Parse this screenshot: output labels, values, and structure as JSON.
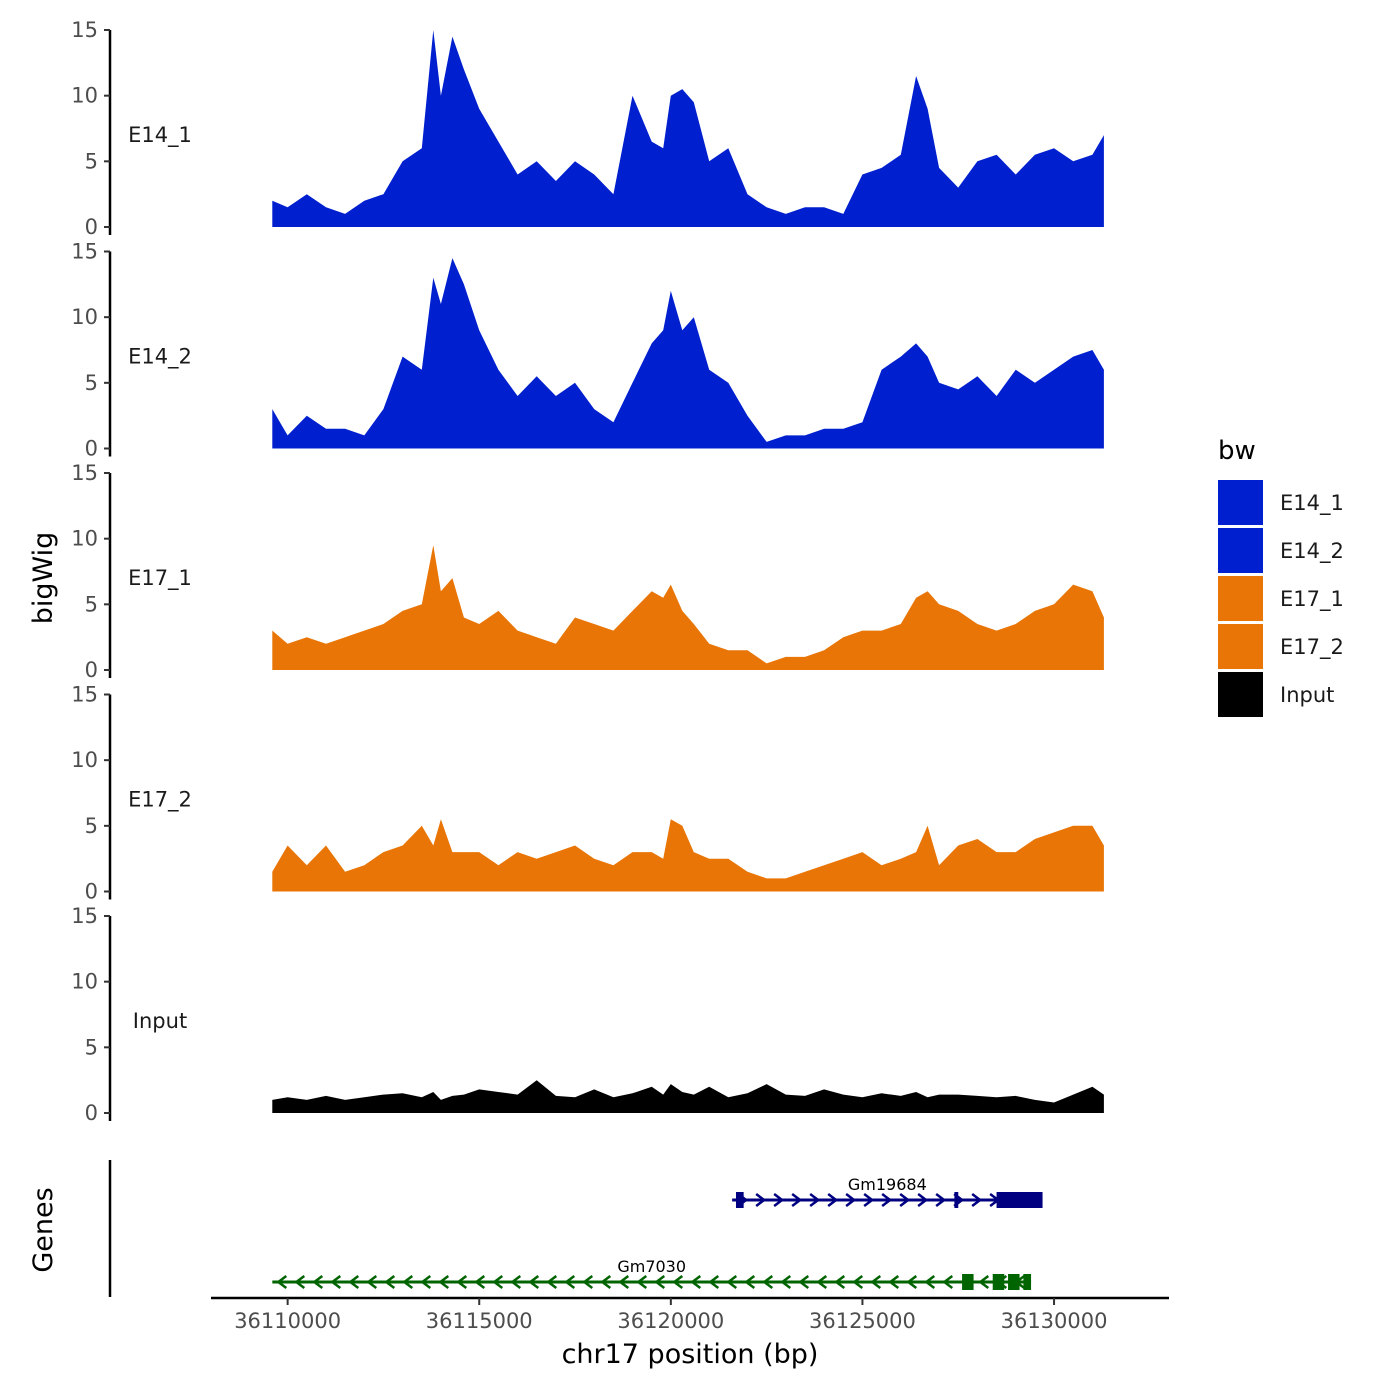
{
  "chart_data": {
    "type": "area",
    "chromosome": "chr17",
    "xlabel": "chr17 position (bp)",
    "ylabel_tracks": "bigWig",
    "ylabel_genes": "Genes",
    "xlim": [
      36108000,
      36133000
    ],
    "ylim": [
      0,
      15
    ],
    "x_ticks": [
      36110000,
      36115000,
      36120000,
      36125000,
      36130000
    ],
    "x_tick_labels": [
      "36110000",
      "36115000",
      "36120000",
      "36125000",
      "36130000"
    ],
    "y_ticks": [
      0,
      5,
      10,
      15
    ],
    "y_tick_labels": [
      "0",
      "5",
      "10",
      "15"
    ],
    "x": [
      36109600,
      36110000,
      36110500,
      36111000,
      36111500,
      36112000,
      36112500,
      36113000,
      36113500,
      36113800,
      36114000,
      36114300,
      36114600,
      36115000,
      36115500,
      36116000,
      36116500,
      36117000,
      36117500,
      36118000,
      36118500,
      36119000,
      36119500,
      36119800,
      36120000,
      36120300,
      36120600,
      36121000,
      36121500,
      36122000,
      36122500,
      36123000,
      36123500,
      36124000,
      36124500,
      36125000,
      36125500,
      36126000,
      36126400,
      36126700,
      36127000,
      36127500,
      36128000,
      36128500,
      36129000,
      36129500,
      36130000,
      36130500,
      36131000,
      36131300
    ],
    "series": [
      {
        "name": "E14_1",
        "color": "#0020CF",
        "values": [
          2,
          1.5,
          2.5,
          1.5,
          1,
          2,
          2.5,
          5,
          6,
          15,
          10,
          14.5,
          12,
          9,
          6.5,
          4,
          5,
          3.5,
          5,
          4,
          2.5,
          10,
          6.5,
          6,
          10,
          10.5,
          9.5,
          5,
          6,
          2.5,
          1.5,
          1,
          1.5,
          1.5,
          1,
          4,
          4.5,
          5.5,
          11.5,
          9,
          4.5,
          3,
          5,
          5.5,
          4,
          5.5,
          6,
          5,
          5.5,
          7
        ]
      },
      {
        "name": "E14_2",
        "color": "#0020CF",
        "values": [
          3,
          1,
          2.5,
          1.5,
          1.5,
          1,
          3,
          7,
          6,
          13,
          11,
          14.5,
          12.5,
          9,
          6,
          4,
          5.5,
          4,
          5,
          3,
          2,
          5,
          8,
          9,
          12,
          9,
          10,
          6,
          5,
          2.5,
          0.5,
          1,
          1,
          1.5,
          1.5,
          2,
          6,
          7,
          8,
          7,
          5,
          4.5,
          5.5,
          4,
          6,
          5,
          6,
          7,
          7.5,
          6
        ]
      },
      {
        "name": "E17_1",
        "color": "#E87505",
        "values": [
          3,
          2,
          2.5,
          2,
          2.5,
          3,
          3.5,
          4.5,
          5,
          9.5,
          6,
          7,
          4,
          3.5,
          4.5,
          3,
          2.5,
          2,
          4,
          3.5,
          3,
          4.5,
          6,
          5.5,
          6.5,
          4.5,
          3.5,
          2,
          1.5,
          1.5,
          0.5,
          1,
          1,
          1.5,
          2.5,
          3,
          3,
          3.5,
          5.5,
          6,
          5,
          4.5,
          3.5,
          3,
          3.5,
          4.5,
          5,
          6.5,
          6,
          4
        ]
      },
      {
        "name": "E17_2",
        "color": "#E87505",
        "values": [
          1.5,
          3.5,
          2,
          3.5,
          1.5,
          2,
          3,
          3.5,
          5,
          3.5,
          5.5,
          3,
          3,
          3,
          2,
          3,
          2.5,
          3,
          3.5,
          2.5,
          2,
          3,
          3,
          2.5,
          5.5,
          5,
          3,
          2.5,
          2.5,
          1.5,
          1,
          1,
          1.5,
          2,
          2.5,
          3,
          2,
          2.5,
          3,
          5,
          2,
          3.5,
          4,
          3,
          3,
          4,
          4.5,
          5,
          5,
          3.5
        ]
      },
      {
        "name": "Input",
        "color": "#000000",
        "values": [
          1,
          1.2,
          1,
          1.3,
          1,
          1.2,
          1.4,
          1.5,
          1.2,
          1.6,
          1,
          1.3,
          1.4,
          1.8,
          1.6,
          1.4,
          2.5,
          1.3,
          1.2,
          1.8,
          1.2,
          1.5,
          2,
          1.4,
          2.2,
          1.6,
          1.4,
          2,
          1.2,
          1.5,
          2.2,
          1.4,
          1.3,
          1.8,
          1.4,
          1.2,
          1.5,
          1.3,
          1.6,
          1.2,
          1.4,
          1.4,
          1.3,
          1.2,
          1.3,
          1,
          0.8,
          1.4,
          2,
          1.4
        ]
      }
    ],
    "legend": {
      "title": "bw",
      "position": "right",
      "entries": [
        {
          "label": "E14_1",
          "color": "#0020CF"
        },
        {
          "label": "E14_2",
          "color": "#0020CF"
        },
        {
          "label": "E17_1",
          "color": "#E87505"
        },
        {
          "label": "E17_2",
          "color": "#E87505"
        },
        {
          "label": "Input",
          "color": "#000000"
        }
      ]
    },
    "genes": [
      {
        "name": "Gm19684",
        "strand": "+",
        "color": "#000080",
        "start": 36121600,
        "end": 36129700,
        "exons": [
          [
            36121700,
            36121900
          ],
          [
            36127400,
            36127500
          ],
          [
            36128500,
            36129700
          ]
        ]
      },
      {
        "name": "Gm7030",
        "strand": "-",
        "color": "#006400",
        "start": 36109600,
        "end": 36129400,
        "exons": [
          [
            36127600,
            36127900
          ],
          [
            36128400,
            36128700
          ],
          [
            36128800,
            36129100
          ],
          [
            36129200,
            36129400
          ]
        ]
      }
    ]
  }
}
